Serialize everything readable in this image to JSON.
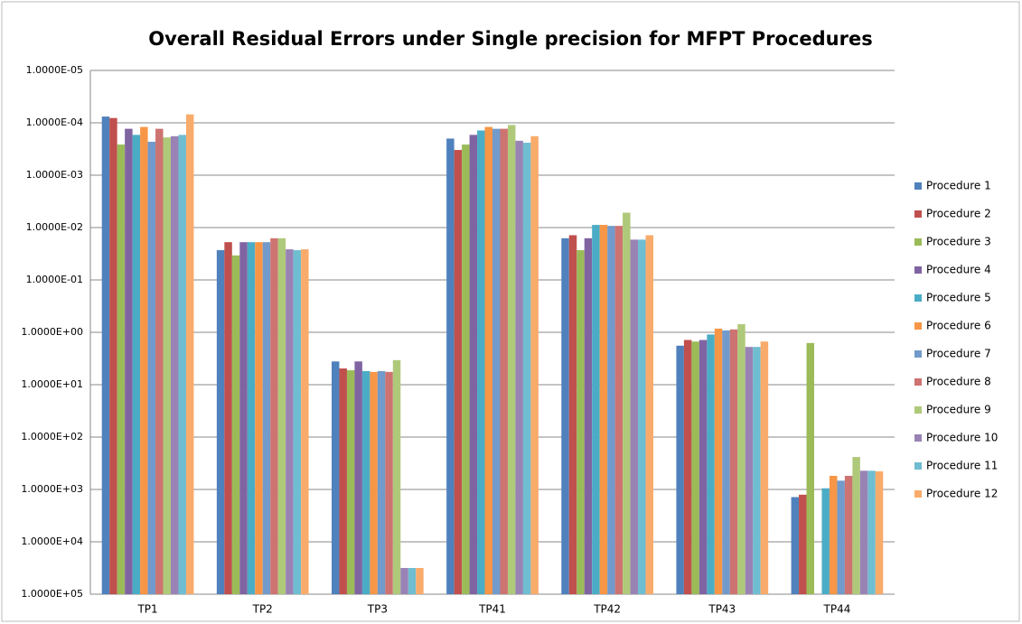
{
  "chart_data": {
    "type": "bar",
    "title": "Overall Residual Errors under Single precision for MFPT Procedures",
    "log_scale": true,
    "y_reversed": true,
    "grid": true,
    "legend": "right",
    "ylim": [
      1e-05,
      100000
    ],
    "yticks": [
      {
        "value": 1e-05,
        "label": "1.0000E-05"
      },
      {
        "value": 0.0001,
        "label": "1.0000E-04"
      },
      {
        "value": 0.001,
        "label": "1.0000E-03"
      },
      {
        "value": 0.01,
        "label": "1.0000E-02"
      },
      {
        "value": 0.1,
        "label": "1.0000E-01"
      },
      {
        "value": 1,
        "label": "1.0000E+00"
      },
      {
        "value": 10,
        "label": "1.0000E+01"
      },
      {
        "value": 100,
        "label": "1.0000E+02"
      },
      {
        "value": 1000,
        "label": "1.0000E+03"
      },
      {
        "value": 10000,
        "label": "1.0000E+04"
      },
      {
        "value": 100000,
        "label": "1.0000E+05"
      }
    ],
    "categories": [
      "TP1",
      "TP2",
      "TP3",
      "TP41",
      "TP42",
      "TP43",
      "TP44"
    ],
    "series": [
      {
        "name": "Procedure 1",
        "color": "#4f81bd",
        "values": [
          7.6e-05,
          0.027,
          3.6,
          0.0002,
          0.016,
          1.8,
          1400
        ]
      },
      {
        "name": "Procedure 2",
        "color": "#c0504d",
        "values": [
          8.1e-05,
          0.019,
          4.9,
          0.00033,
          0.014,
          1.4,
          1260
        ]
      },
      {
        "name": "Procedure 3",
        "color": "#9bbb59",
        "values": [
          0.00026,
          0.034,
          5.3,
          0.00026,
          0.027,
          1.5,
          1.6
        ]
      },
      {
        "name": "Procedure 4",
        "color": "#8064a2",
        "values": [
          0.00013,
          0.019,
          3.6,
          0.00017,
          0.016,
          1.4,
          null
        ]
      },
      {
        "name": "Procedure 5",
        "color": "#4bacc6",
        "values": [
          0.00017,
          0.019,
          5.5,
          0.00014,
          0.0089,
          1.1,
          950
        ]
      },
      {
        "name": "Procedure 6",
        "color": "#f79646",
        "values": [
          0.00012,
          0.019,
          5.7,
          0.00012,
          0.0089,
          0.85,
          550
        ]
      },
      {
        "name": "Procedure 7",
        "color": "#729aca",
        "values": [
          0.00023,
          0.019,
          5.5,
          0.00013,
          0.0093,
          0.92,
          680
        ]
      },
      {
        "name": "Procedure 8",
        "color": "#cd7371",
        "values": [
          0.00013,
          0.016,
          5.7,
          0.00013,
          0.0093,
          0.88,
          550
        ]
      },
      {
        "name": "Procedure 9",
        "color": "#afc97a",
        "values": [
          0.00019,
          0.016,
          3.4,
          0.00011,
          0.0052,
          0.7,
          240
        ]
      },
      {
        "name": "Procedure 10",
        "color": "#9983b5",
        "values": [
          0.00018,
          0.026,
          31600,
          0.00022,
          0.017,
          1.9,
          440
        ]
      },
      {
        "name": "Procedure 11",
        "color": "#6fbdd1",
        "values": [
          0.00017,
          0.027,
          31600,
          0.00024,
          0.017,
          1.9,
          440
        ]
      },
      {
        "name": "Procedure 12",
        "color": "#f9ab6b",
        "values": [
          6.9e-05,
          0.026,
          31600,
          0.00018,
          0.014,
          1.5,
          450
        ]
      }
    ]
  }
}
